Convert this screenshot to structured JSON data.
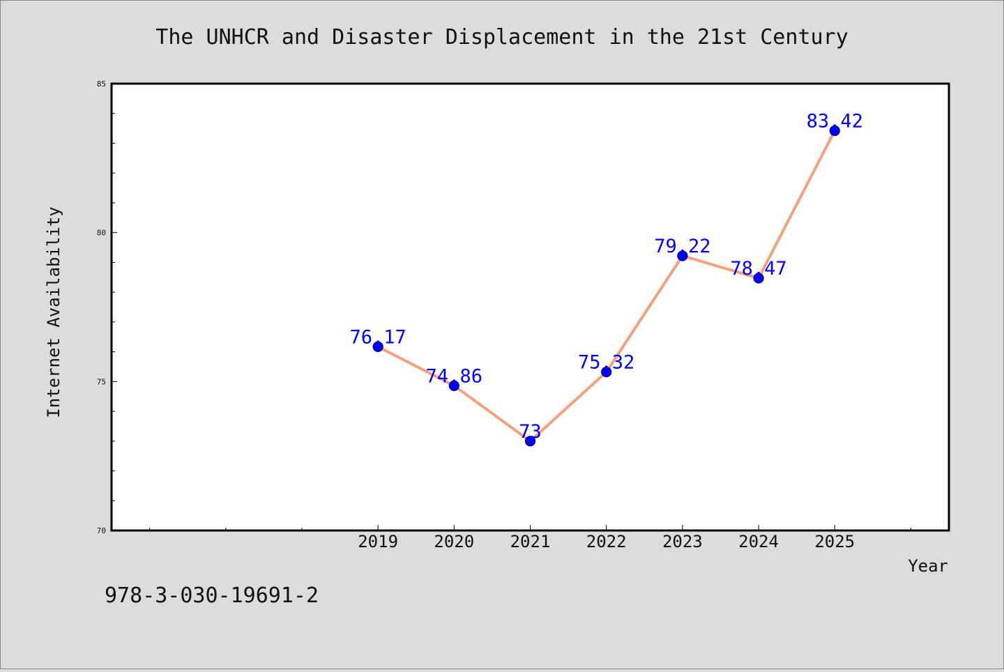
{
  "chart_data": {
    "type": "line",
    "title": "The UNHCR and Disaster Displacement in the 21st Century",
    "xlabel": "Year",
    "ylabel": "Internet Availability",
    "x": [
      2019,
      2020,
      2021,
      2022,
      2023,
      2024,
      2025
    ],
    "x_tick_labels": [
      "2019",
      "2020",
      "2021",
      "2022",
      "2023",
      "2024",
      "2025"
    ],
    "series": [
      {
        "values": [
          76.17,
          74.86,
          73,
          75.32,
          79.22,
          78.47,
          83.42
        ],
        "data_labels": [
          "76.17",
          "74.86",
          "73",
          "75.32",
          "79.22",
          "78.47",
          "83.42"
        ],
        "line_color": "#f4a07c",
        "marker_color": "#0000ff"
      }
    ],
    "xlim": [
      2015.5,
      2026.5
    ],
    "ylim": [
      70,
      85
    ],
    "y_tick_values": [
      70,
      75,
      80,
      85
    ],
    "y_tick_labels": [
      "70",
      "75",
      "80",
      "85"
    ],
    "grid": false,
    "legend": "none",
    "annotation": "978-3-030-19691-2",
    "colors": {
      "background": "#dcdcdc",
      "plot_background": "#ffffff",
      "data_label": "#0000ff"
    }
  }
}
